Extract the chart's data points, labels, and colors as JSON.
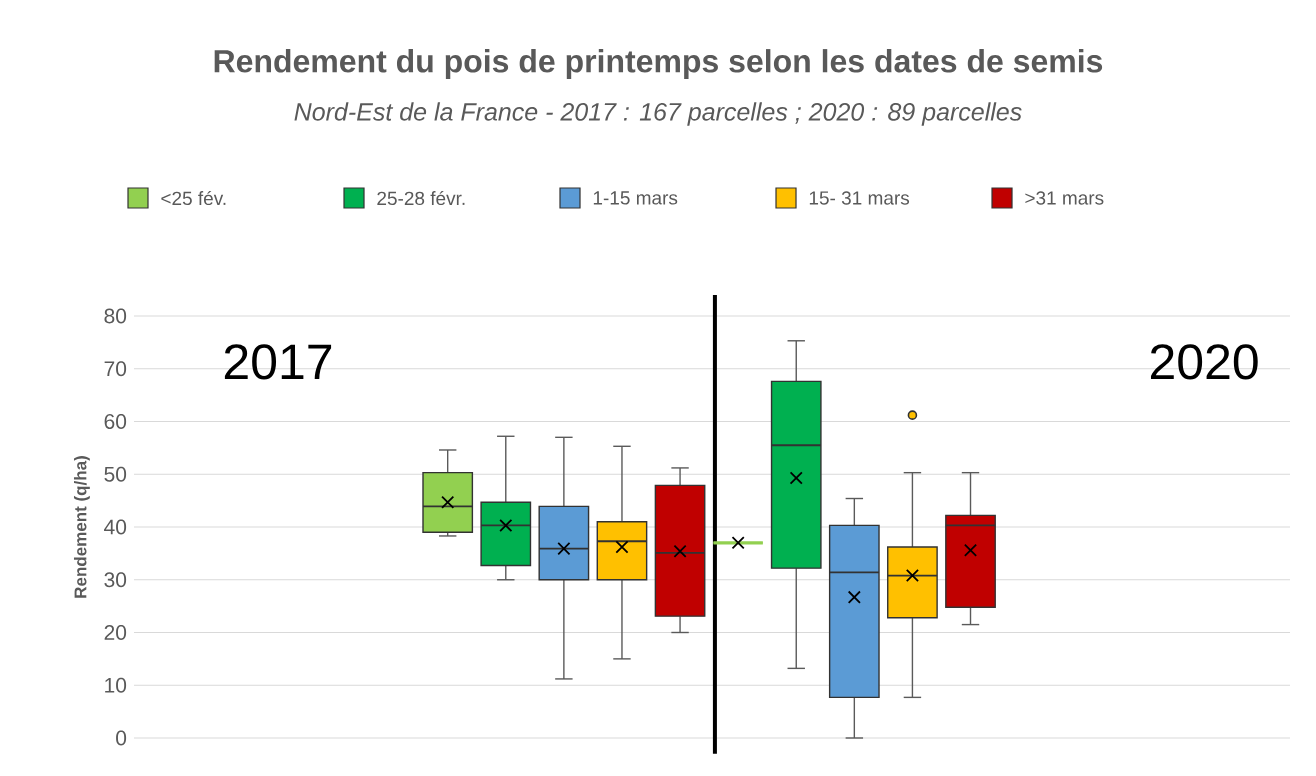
{
  "chart_data": {
    "type": "box",
    "title": "Rendement du pois de printemps selon les dates de semis",
    "subtitle": "Nord-Est de la France - 2017 : 167 parcelles ; 2020 : 89 parcelles",
    "ylabel": "Rendement (q/ha)",
    "categories": [
      null,
      null
    ],
    "annotations": [
      "2017",
      "2020"
    ],
    "ylim": [
      0,
      80
    ],
    "yticks": [
      0,
      10,
      20,
      30,
      40,
      50,
      60,
      70,
      80
    ],
    "grid": "y",
    "legend": "top",
    "tick_labels": "y",
    "series": [
      {
        "name": "<25 fév.",
        "color": "#92d050",
        "boxes": [
          {
            "low": 38.3,
            "q1": 39,
            "median": 43.9,
            "q3": 50.3,
            "high": 54.6,
            "mean": 44.7
          },
          {
            "low": 37,
            "q1": 37,
            "median": 37,
            "q3": 37,
            "high": 37,
            "mean": 37
          }
        ]
      },
      {
        "name": "25-28 févr.",
        "color": "#00b050",
        "boxes": [
          {
            "low": 30,
            "q1": 32.7,
            "median": 40.3,
            "q3": 44.7,
            "high": 57.2,
            "mean": 40.3
          },
          {
            "low": 13.2,
            "q1": 32.2,
            "median": 55.5,
            "q3": 67.6,
            "high": 75.3,
            "mean": 49.3
          }
        ]
      },
      {
        "name": "1-15 mars",
        "color": "#5b9bd5",
        "boxes": [
          {
            "low": 11.2,
            "q1": 30,
            "median": 35.9,
            "q3": 43.9,
            "high": 57,
            "mean": 35.9
          },
          {
            "low": 0,
            "q1": 7.7,
            "median": 31.4,
            "q3": 40.3,
            "high": 45.4,
            "mean": 26.7
          }
        ]
      },
      {
        "name": "15- 31 mars",
        "color": "#ffc000",
        "boxes": [
          {
            "low": 15,
            "q1": 30,
            "median": 37.3,
            "q3": 41,
            "high": 55.3,
            "mean": 36.2
          },
          {
            "low": 7.7,
            "q1": 22.8,
            "median": 30.8,
            "q3": 36.2,
            "high": 50.3,
            "mean": 30.8,
            "outliers": [
              61.2
            ]
          }
        ]
      },
      {
        "name": ">31 mars",
        "color": "#c00000",
        "boxes": [
          {
            "low": 20,
            "q1": 23.1,
            "median": 35.1,
            "q3": 47.9,
            "high": 51.2,
            "mean": 35.4
          },
          {
            "low": 21.5,
            "q1": 24.8,
            "median": 40.3,
            "q3": 42.2,
            "high": 50.3,
            "mean": 35.6
          }
        ]
      }
    ]
  }
}
